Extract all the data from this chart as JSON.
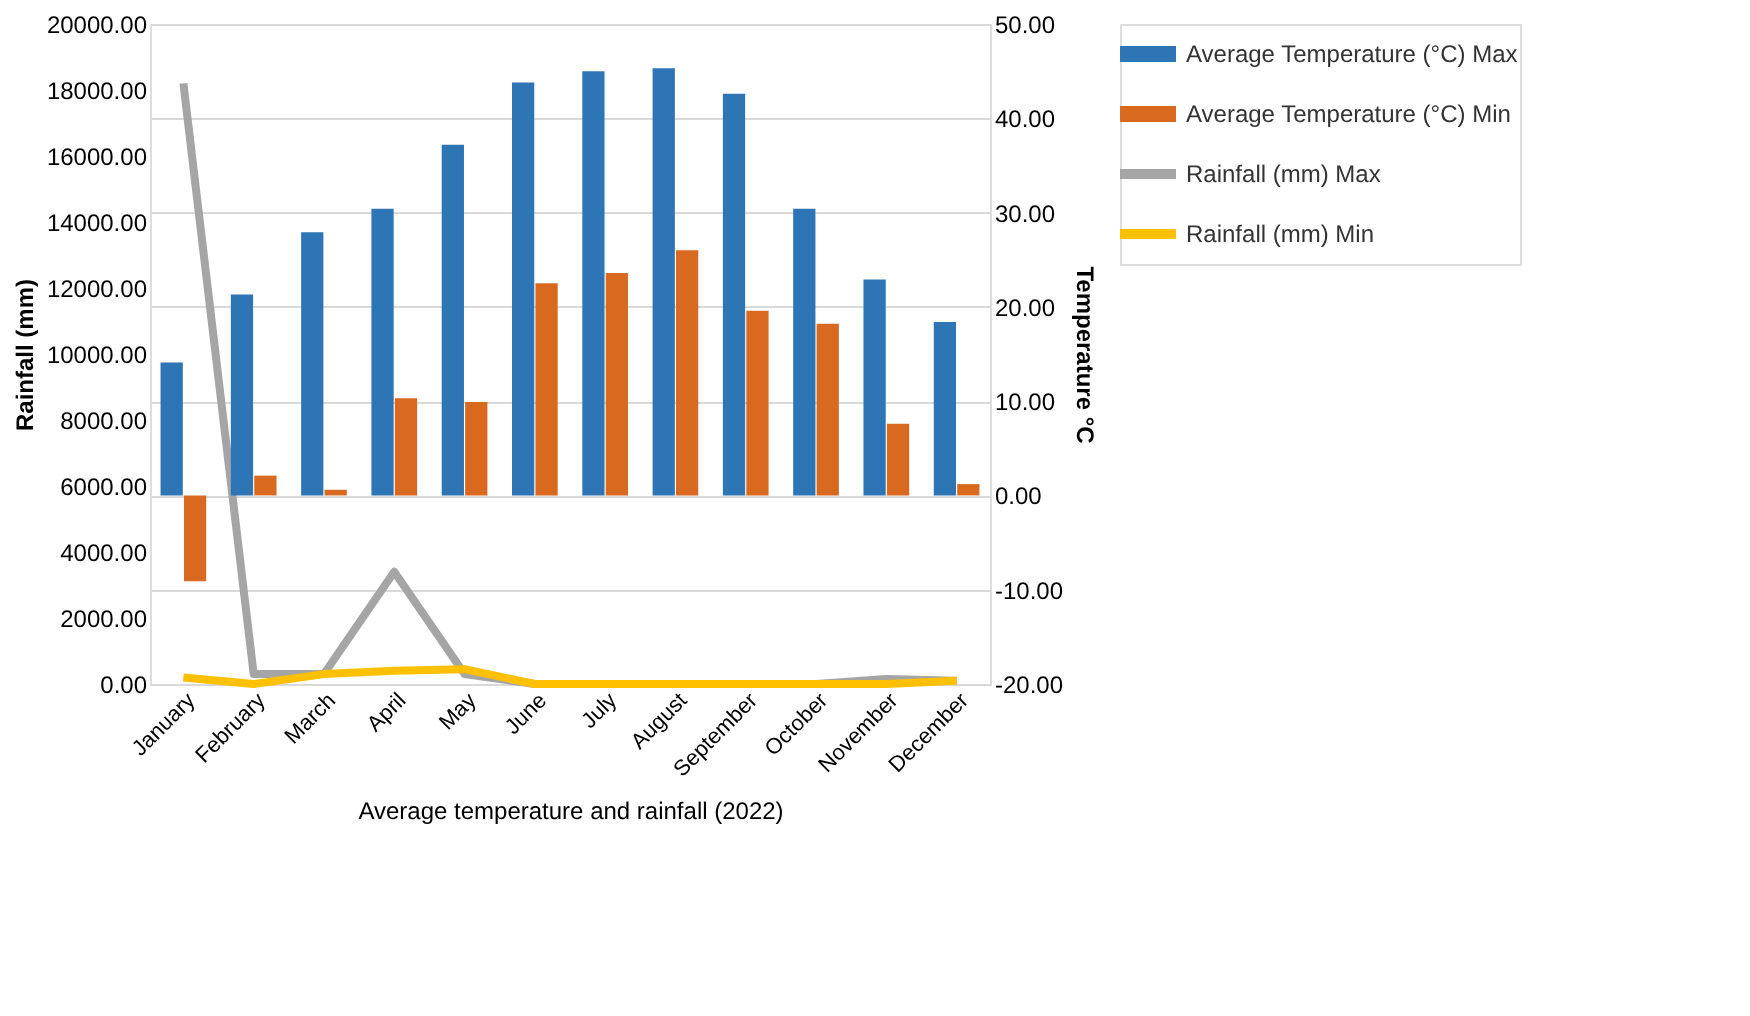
{
  "chart_data": {
    "type": "bar",
    "xlabel": "Average temperature and rainfall (2022)",
    "ylabel": "Rainfall (mm)",
    "y2label": "Temperature °C",
    "categories": [
      "January",
      "February",
      "March",
      "April",
      "May",
      "June",
      "July",
      "August",
      "September",
      "October",
      "November",
      "December"
    ],
    "series": [
      {
        "name": "Average Temperature (°C) Max",
        "axis": "y2",
        "color": "#2e75b6",
        "values": [
          14.1,
          21.3,
          27.9,
          30.4,
          37.2,
          43.8,
          45.0,
          45.3,
          42.6,
          30.4,
          22.9,
          18.4
        ]
      },
      {
        "name": "Average Temperature (°C) Min",
        "axis": "y2",
        "color": "#d9691e",
        "values": [
          -9.1,
          2.1,
          0.6,
          10.3,
          9.9,
          22.5,
          23.6,
          26.0,
          19.6,
          18.2,
          7.6,
          1.2
        ]
      },
      {
        "name": "Rainfall (mm) Max",
        "type": "line",
        "color": "#a5a5a5",
        "values": [
          18200,
          300,
          300,
          3400,
          300,
          0,
          0,
          0,
          0,
          0,
          150,
          100
        ]
      },
      {
        "name": "Rainfall (mm) Min",
        "type": "line",
        "color": "#ffc000",
        "values": [
          200,
          0,
          300,
          400,
          450,
          0,
          0,
          0,
          0,
          0,
          0,
          100
        ]
      }
    ],
    "ylim": [
      0,
      20000
    ],
    "yticks": [
      {
        "value": 0,
        "label": "0.00"
      },
      {
        "value": 2000,
        "label": "2000.00"
      },
      {
        "value": 4000,
        "label": "4000.00"
      },
      {
        "value": 6000,
        "label": "6000.00"
      },
      {
        "value": 8000,
        "label": "8000.00"
      },
      {
        "value": 10000,
        "label": "10000.00"
      },
      {
        "value": 12000,
        "label": "12000.00"
      },
      {
        "value": 14000,
        "label": "14000.00"
      },
      {
        "value": 16000,
        "label": "16000.00"
      },
      {
        "value": 18000,
        "label": "18000.00"
      },
      {
        "value": 20000,
        "label": "20000.00"
      }
    ],
    "y2lim": [
      -20,
      50
    ],
    "y2ticks": [
      {
        "value": -20,
        "label": "-20.00"
      },
      {
        "value": -10,
        "label": "-10.00"
      },
      {
        "value": 0,
        "label": "0.00"
      },
      {
        "value": 10,
        "label": "10.00"
      },
      {
        "value": 20,
        "label": "20.00"
      },
      {
        "value": 30,
        "label": "30.00"
      },
      {
        "value": 40,
        "label": "40.00"
      },
      {
        "value": 50,
        "label": "50.00"
      }
    ],
    "grid": "y2",
    "legend": "right",
    "line_style": "solid"
  }
}
